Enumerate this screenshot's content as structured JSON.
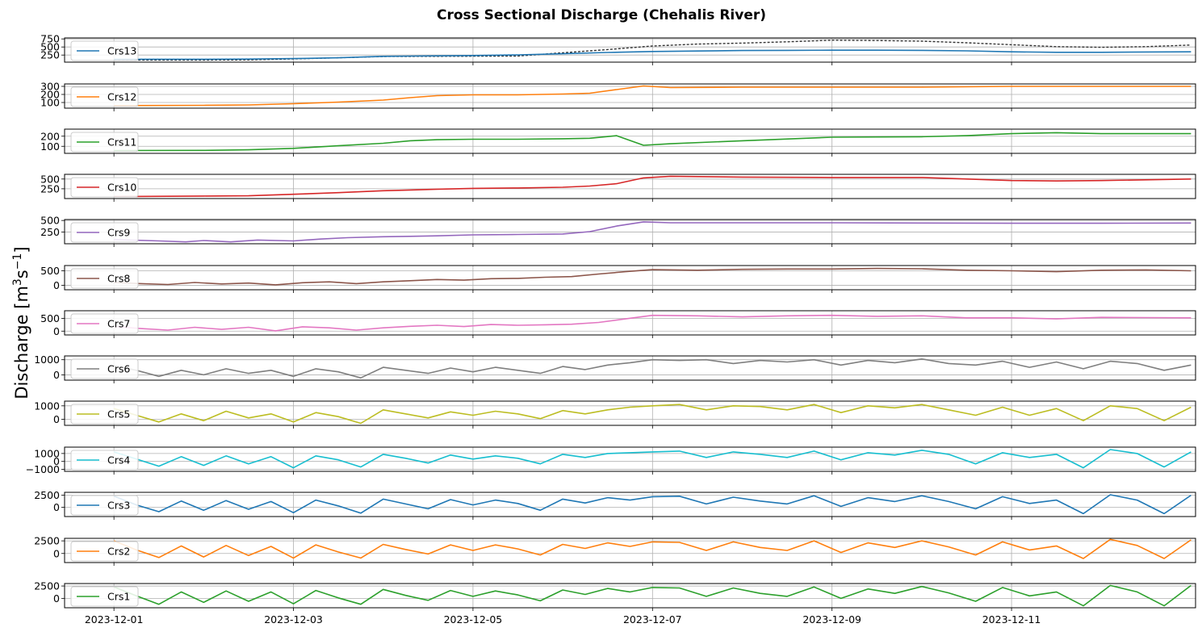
{
  "figure": {
    "title": "Cross Sectional Discharge (Chehalis River)",
    "ylabel_main": "Discharge [m",
    "ylabel_sup1": "3",
    "ylabel_mid": "s",
    "ylabel_sup2": "−1",
    "ylabel_end": "]"
  },
  "chart_data": {
    "type": "line",
    "grid": true,
    "legend_position": "lower-left",
    "x_start": "2023-12-01",
    "x_end": "2023-12-12",
    "x_range": [
      -0.55,
      12.05
    ],
    "x_ticks": [
      0,
      2,
      4,
      6,
      8,
      10
    ],
    "x_tick_labels": [
      "2023-12-01",
      "2023-12-03",
      "2023-12-05",
      "2023-12-07",
      "2023-12-09",
      "2023-12-11"
    ],
    "panels": [
      {
        "name": "Crs13",
        "color": "#1f77b4",
        "ylim": [
          30,
          780
        ],
        "yticks": [
          250,
          500,
          750
        ],
        "has_reference_dashed": true,
        "reference_color": "#333333",
        "x": [
          0,
          1,
          1.5,
          2,
          2.5,
          3,
          4,
          4.5,
          5,
          5.5,
          6,
          6.5,
          7,
          7.5,
          8,
          8.5,
          9,
          9.5,
          10,
          10.5,
          11,
          11.5,
          12
        ],
        "values": [
          120,
          120,
          125,
          140,
          165,
          210,
          235,
          255,
          290,
          330,
          360,
          375,
          390,
          395,
          400,
          400,
          395,
          380,
          350,
          335,
          335,
          345,
          350
        ],
        "reference_values": [
          95,
          95,
          100,
          130,
          165,
          205,
          215,
          220,
          320,
          420,
          530,
          590,
          620,
          660,
          710,
          700,
          680,
          630,
          570,
          510,
          490,
          510,
          560
        ]
      },
      {
        "name": "Crs12",
        "color": "#ff7f0e",
        "ylim": [
          30,
          330
        ],
        "yticks": [
          100,
          200,
          300
        ],
        "x": [
          0,
          1,
          1.5,
          2,
          2.5,
          3,
          3.3,
          3.6,
          4,
          4.5,
          5,
          5.3,
          5.6,
          5.9,
          6.2,
          7,
          8,
          9,
          10,
          11,
          12
        ],
        "values": [
          62,
          65,
          70,
          85,
          105,
          130,
          160,
          185,
          195,
          195,
          205,
          215,
          260,
          305,
          285,
          290,
          290,
          290,
          300,
          300,
          300
        ]
      },
      {
        "name": "Crs11",
        "color": "#2ca02c",
        "ylim": [
          30,
          270
        ],
        "yticks": [
          100,
          200
        ],
        "x": [
          0,
          1,
          1.5,
          2,
          2.5,
          3,
          3.3,
          3.6,
          4,
          4.5,
          5,
          5.3,
          5.6,
          5.9,
          6.2,
          7,
          8,
          9,
          9.5,
          10,
          10.5,
          11,
          12
        ],
        "values": [
          58,
          60,
          65,
          80,
          105,
          130,
          155,
          165,
          170,
          170,
          175,
          180,
          205,
          110,
          125,
          155,
          190,
          195,
          205,
          225,
          235,
          225,
          225
        ]
      },
      {
        "name": "Crs10",
        "color": "#d62728",
        "ylim": [
          0,
          620
        ],
        "yticks": [
          250,
          500
        ],
        "x": [
          0,
          1,
          1.5,
          2,
          2.5,
          3,
          3.3,
          3.6,
          4,
          4.5,
          5,
          5.3,
          5.6,
          5.9,
          6.2,
          7,
          8,
          9,
          10,
          10.5,
          11,
          12
        ],
        "values": [
          50,
          65,
          70,
          110,
          150,
          200,
          220,
          240,
          260,
          270,
          290,
          320,
          380,
          530,
          570,
          550,
          540,
          540,
          460,
          450,
          460,
          500
        ]
      },
      {
        "name": "Crs9",
        "color": "#9467bd",
        "ylim": [
          0,
          520
        ],
        "yticks": [
          250,
          500
        ],
        "x": [
          0,
          0.5,
          0.8,
          1,
          1.3,
          1.6,
          2,
          2.3,
          2.6,
          3,
          3.3,
          3.6,
          4,
          4.5,
          5,
          5.3,
          5.6,
          5.9,
          6.2,
          7,
          8,
          9,
          10,
          11,
          12
        ],
        "values": [
          90,
          60,
          40,
          70,
          40,
          80,
          60,
          100,
          130,
          150,
          160,
          170,
          190,
          200,
          210,
          260,
          380,
          470,
          450,
          450,
          450,
          445,
          440,
          440,
          445
        ]
      },
      {
        "name": "Crs8",
        "color": "#8c564b",
        "ylim": [
          -150,
          680
        ],
        "yticks": [
          0,
          500
        ],
        "x": [
          0,
          0.3,
          0.6,
          0.9,
          1.2,
          1.5,
          1.8,
          2.1,
          2.4,
          2.7,
          3,
          3.3,
          3.6,
          3.9,
          4.2,
          4.5,
          4.8,
          5.1,
          5.4,
          5.7,
          6,
          6.5,
          7,
          7.5,
          8,
          8.5,
          9,
          9.5,
          10,
          10.5,
          11,
          11.5,
          12
        ],
        "values": [
          100,
          60,
          30,
          100,
          50,
          80,
          20,
          90,
          120,
          60,
          120,
          160,
          200,
          180,
          230,
          240,
          280,
          300,
          390,
          470,
          540,
          520,
          550,
          560,
          560,
          580,
          570,
          520,
          500,
          470,
          520,
          530,
          500
        ]
      },
      {
        "name": "Crs7",
        "color": "#e377c2",
        "ylim": [
          -150,
          800
        ],
        "yticks": [
          0,
          500
        ],
        "x": [
          0,
          0.3,
          0.6,
          0.9,
          1.2,
          1.5,
          1.8,
          2.1,
          2.4,
          2.7,
          3,
          3.3,
          3.6,
          3.9,
          4.2,
          4.5,
          4.8,
          5.1,
          5.4,
          5.7,
          6,
          6.5,
          7,
          7.5,
          8,
          8.5,
          9,
          9.5,
          10,
          10.5,
          11,
          11.5,
          12
        ],
        "values": [
          180,
          100,
          40,
          150,
          70,
          150,
          10,
          170,
          130,
          40,
          130,
          190,
          230,
          180,
          260,
          230,
          250,
          270,
          340,
          480,
          620,
          600,
          560,
          600,
          620,
          580,
          600,
          520,
          520,
          480,
          540,
          530,
          520
        ]
      },
      {
        "name": "Crs6",
        "color": "#7f7f7f",
        "ylim": [
          -350,
          1250
        ],
        "yticks": [
          0,
          1000
        ],
        "x": [
          0,
          0.25,
          0.5,
          0.75,
          1,
          1.25,
          1.5,
          1.75,
          2,
          2.25,
          2.5,
          2.75,
          3,
          3.25,
          3.5,
          3.75,
          4,
          4.25,
          4.5,
          4.75,
          5,
          5.25,
          5.5,
          5.75,
          6,
          6.3,
          6.6,
          6.9,
          7.2,
          7.5,
          7.8,
          8.1,
          8.4,
          8.7,
          9,
          9.3,
          9.6,
          9.9,
          10.2,
          10.5,
          10.8,
          11.1,
          11.4,
          11.7,
          12
        ],
        "values": [
          600,
          300,
          -100,
          300,
          0,
          400,
          100,
          300,
          -100,
          400,
          200,
          -200,
          500,
          300,
          100,
          450,
          200,
          500,
          300,
          100,
          550,
          350,
          650,
          800,
          1000,
          950,
          1000,
          750,
          950,
          850,
          1000,
          650,
          950,
          800,
          1050,
          750,
          650,
          900,
          500,
          850,
          400,
          900,
          750,
          300,
          650
        ]
      },
      {
        "name": "Crs5",
        "color": "#bcbd22",
        "ylim": [
          -450,
          1350
        ],
        "yticks": [
          0,
          1000
        ],
        "x": [
          0,
          0.25,
          0.5,
          0.75,
          1,
          1.25,
          1.5,
          1.75,
          2,
          2.25,
          2.5,
          2.75,
          3,
          3.25,
          3.5,
          3.75,
          4,
          4.25,
          4.5,
          4.75,
          5,
          5.25,
          5.5,
          5.75,
          6,
          6.3,
          6.6,
          6.9,
          7.2,
          7.5,
          7.8,
          8.1,
          8.4,
          8.7,
          9,
          9.3,
          9.6,
          9.9,
          10.2,
          10.5,
          10.8,
          11.1,
          11.4,
          11.7,
          12
        ],
        "values": [
          800,
          300,
          -200,
          400,
          -100,
          600,
          100,
          400,
          -200,
          500,
          200,
          -300,
          700,
          400,
          100,
          550,
          300,
          600,
          400,
          50,
          650,
          400,
          700,
          900,
          1000,
          1100,
          700,
          1000,
          950,
          700,
          1100,
          500,
          1000,
          850,
          1100,
          700,
          300,
          900,
          300,
          800,
          -100,
          1000,
          800,
          -100,
          900
        ]
      },
      {
        "name": "Crs4",
        "color": "#17becf",
        "ylim": [
          -1250,
          1800
        ],
        "yticks": [
          -1000,
          0,
          1000
        ],
        "x": [
          0,
          0.25,
          0.5,
          0.75,
          1,
          1.25,
          1.5,
          1.75,
          2,
          2.25,
          2.5,
          2.75,
          3,
          3.25,
          3.5,
          3.75,
          4,
          4.25,
          4.5,
          4.75,
          5,
          5.25,
          5.5,
          5.75,
          6,
          6.3,
          6.6,
          6.9,
          7.2,
          7.5,
          7.8,
          8.1,
          8.4,
          8.7,
          9,
          9.3,
          9.6,
          9.9,
          10.2,
          10.5,
          10.8,
          11.1,
          11.4,
          11.7,
          12
        ],
        "values": [
          1200,
          300,
          -600,
          600,
          -500,
          700,
          -300,
          600,
          -800,
          700,
          200,
          -700,
          900,
          400,
          -200,
          800,
          300,
          700,
          400,
          -300,
          900,
          500,
          1000,
          1100,
          1200,
          1300,
          500,
          1200,
          900,
          500,
          1300,
          200,
          1100,
          800,
          1400,
          900,
          -300,
          1100,
          500,
          900,
          -800,
          1500,
          1000,
          -700,
          1200
        ]
      },
      {
        "name": "Crs3",
        "color": "#1f77b4",
        "ylim": [
          -1900,
          3100
        ],
        "yticks": [
          0,
          2500
        ],
        "x": [
          0,
          0.25,
          0.5,
          0.75,
          1,
          1.25,
          1.5,
          1.75,
          2,
          2.25,
          2.5,
          2.75,
          3,
          3.25,
          3.5,
          3.75,
          4,
          4.25,
          4.5,
          4.75,
          5,
          5.25,
          5.5,
          5.75,
          6,
          6.3,
          6.6,
          6.9,
          7.2,
          7.5,
          7.8,
          8.1,
          8.4,
          8.7,
          9,
          9.3,
          9.6,
          9.9,
          10.2,
          10.5,
          10.8,
          11.1,
          11.4,
          11.7,
          12
        ],
        "values": [
          2300,
          500,
          -900,
          1300,
          -600,
          1400,
          -400,
          1200,
          -1100,
          1500,
          300,
          -1200,
          1700,
          700,
          -300,
          1600,
          500,
          1500,
          800,
          -600,
          1700,
          900,
          2000,
          1500,
          2200,
          2300,
          700,
          2100,
          1300,
          700,
          2400,
          200,
          2000,
          1200,
          2400,
          1200,
          -300,
          2200,
          800,
          1500,
          -1300,
          2600,
          1500,
          -1300,
          2500
        ]
      },
      {
        "name": "Crs2",
        "color": "#ff7f0e",
        "ylim": [
          -1800,
          3000
        ],
        "yticks": [
          0,
          2500
        ],
        "x": [
          0,
          0.25,
          0.5,
          0.75,
          1,
          1.25,
          1.5,
          1.75,
          2,
          2.25,
          2.5,
          2.75,
          3,
          3.25,
          3.5,
          3.75,
          4,
          4.25,
          4.5,
          4.75,
          5,
          5.25,
          5.5,
          5.75,
          6,
          6.3,
          6.6,
          6.9,
          7.2,
          7.5,
          7.8,
          8.1,
          8.4,
          8.7,
          9,
          9.3,
          9.6,
          9.9,
          10.2,
          10.5,
          10.8,
          11.1,
          11.4,
          11.7,
          12
        ],
        "values": [
          2500,
          700,
          -800,
          1500,
          -700,
          1600,
          -400,
          1400,
          -900,
          1700,
          300,
          -900,
          1800,
          800,
          -100,
          1700,
          600,
          1700,
          900,
          -300,
          1800,
          1000,
          2100,
          1400,
          2300,
          2200,
          600,
          2300,
          1200,
          600,
          2500,
          200,
          2100,
          1200,
          2500,
          1300,
          -300,
          2300,
          700,
          1500,
          -1000,
          2800,
          1600,
          -1000,
          2700
        ]
      },
      {
        "name": "Crs1",
        "color": "#2ca02c",
        "ylim": [
          -1900,
          3000
        ],
        "yticks": [
          0,
          2500
        ],
        "x": [
          0,
          0.25,
          0.5,
          0.75,
          1,
          1.25,
          1.5,
          1.75,
          2,
          2.25,
          2.5,
          2.75,
          3,
          3.25,
          3.5,
          3.75,
          4,
          4.25,
          4.5,
          4.75,
          5,
          5.25,
          5.5,
          5.75,
          6,
          6.3,
          6.6,
          6.9,
          7.2,
          7.5,
          7.8,
          8.1,
          8.4,
          8.7,
          9,
          9.3,
          9.6,
          9.9,
          10.2,
          10.5,
          10.8,
          11.1,
          11.4,
          11.7,
          12
        ],
        "values": [
          2300,
          500,
          -1200,
          1300,
          -800,
          1500,
          -600,
          1300,
          -1100,
          1600,
          100,
          -1200,
          1800,
          600,
          -400,
          1600,
          400,
          1500,
          700,
          -500,
          1700,
          800,
          2000,
          1300,
          2200,
          2100,
          400,
          2100,
          1000,
          400,
          2300,
          0,
          1900,
          1000,
          2400,
          1100,
          -600,
          2200,
          500,
          1300,
          -1500,
          2600,
          1300,
          -1500,
          2600
        ]
      }
    ]
  }
}
